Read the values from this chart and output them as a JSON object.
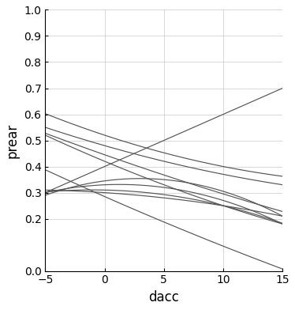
{
  "xlabel": "dacc",
  "ylabel": "prear",
  "xlim": [
    -5,
    15
  ],
  "ylim": [
    0.0,
    1.0
  ],
  "xticks": [
    -5,
    0,
    5,
    10,
    15
  ],
  "yticks": [
    0.0,
    0.2,
    0.3,
    0.4,
    0.5,
    0.6,
    0.7,
    0.8,
    0.9,
    1.0
  ],
  "line_color": "#555555",
  "line_width": 0.85,
  "background_color": "#ffffff",
  "grid_color": "#bbbbbb",
  "curves": [
    {
      "a": 0.0,
      "b": 0.02,
      "c": 0.4
    },
    {
      "a": -0.001,
      "b": 0.006,
      "c": 0.345
    },
    {
      "a": -0.0008,
      "b": 0.002,
      "c": 0.33
    },
    {
      "a": -0.0005,
      "b": -0.001,
      "c": 0.31
    },
    {
      "a": -0.0002,
      "b": -0.003,
      "c": 0.3
    },
    {
      "a": 0.0003,
      "b": -0.015,
      "c": 0.52
    },
    {
      "a": 0.0002,
      "b": -0.013,
      "c": 0.48
    },
    {
      "a": 0.0001,
      "b": -0.016,
      "c": 0.445
    },
    {
      "a": 0.0002,
      "b": -0.019,
      "c": 0.42
    },
    {
      "a": 0.0001,
      "b": -0.02,
      "c": 0.285
    }
  ]
}
